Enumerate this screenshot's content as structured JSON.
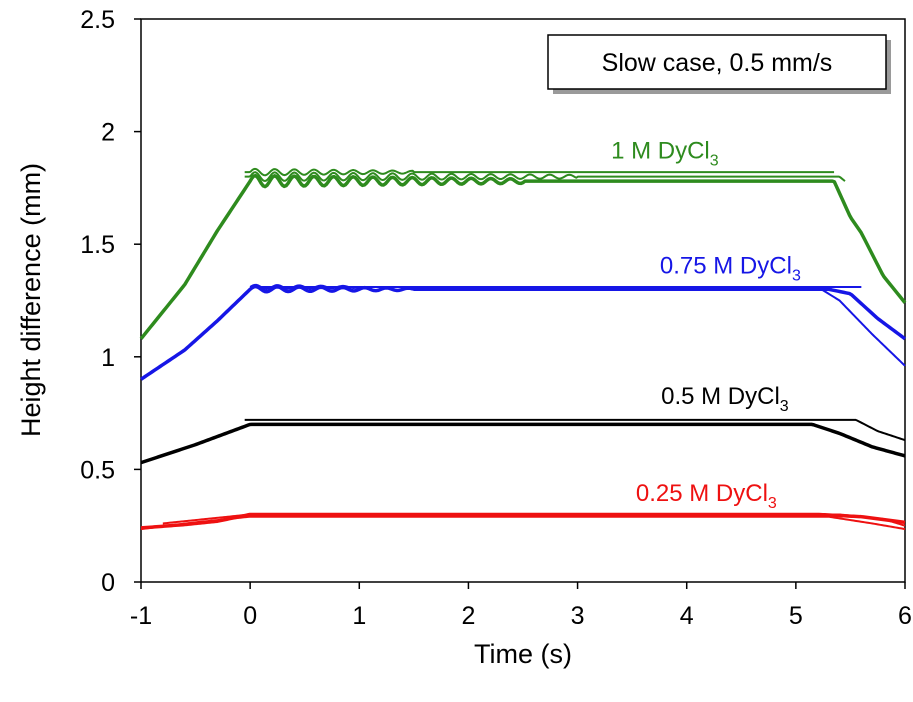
{
  "chart_data": {
    "type": "line",
    "title": "",
    "xlabel": "Time (s)",
    "ylabel": "Height difference (mm)",
    "xlim": [
      -1,
      6
    ],
    "ylim": [
      0,
      2.5
    ],
    "xticks": [
      -1,
      0,
      1,
      2,
      3,
      4,
      5,
      6
    ],
    "yticks": [
      0,
      0.5,
      1,
      1.5,
      2,
      2.5
    ],
    "xtick_labels": [
      "-1",
      "0",
      "1",
      "2",
      "3",
      "4",
      "5",
      "6"
    ],
    "ytick_labels": [
      "0",
      "0.5",
      "1",
      "1.5",
      "2",
      "2.5"
    ],
    "grid": false,
    "legend": "none",
    "annotation": "Slow case, 0.5 mm/s",
    "series": [
      {
        "name": "1 M DyCl3",
        "label_main": "1 M DyCl",
        "label_sub": "3",
        "color": "#2e8b1e",
        "curves": [
          {
            "width": 3.5,
            "x": [
              -1,
              -0.6,
              -0.3,
              0,
              5.35,
              5.5,
              5.6,
              5.8,
              6
            ],
            "y": [
              1.08,
              1.32,
              1.56,
              1.78,
              1.78,
              1.62,
              1.55,
              1.36,
              1.24
            ],
            "osc_start": 0,
            "osc_end": 2.5,
            "amp": 0.025,
            "period": 0.18
          },
          {
            "width": 2,
            "x": [
              -0.05,
              5.4,
              5.45
            ],
            "y": [
              1.8,
              1.8,
              1.78
            ],
            "osc_start": 0,
            "osc_end": 3,
            "amp": 0.02,
            "period": 0.18
          },
          {
            "width": 2,
            "x": [
              -0.05,
              5.35
            ],
            "y": [
              1.82,
              1.82
            ],
            "osc_start": 0,
            "osc_end": 1.5,
            "amp": 0.015,
            "period": 0.18
          }
        ]
      },
      {
        "name": "0.75 M DyCl3",
        "label_main": "0.75 M DyCl",
        "label_sub": "3",
        "color": "#1616e6",
        "curves": [
          {
            "width": 3.5,
            "x": [
              -1,
              -0.6,
              -0.3,
              0,
              5.3,
              5.5,
              5.75,
              6
            ],
            "y": [
              0.9,
              1.03,
              1.16,
              1.3,
              1.3,
              1.28,
              1.17,
              1.08
            ],
            "osc_start": 0,
            "osc_end": 1.5,
            "amp": 0.012,
            "period": 0.2
          },
          {
            "width": 2,
            "x": [
              0,
              5.2,
              5.4,
              5.7,
              6
            ],
            "y": [
              1.31,
              1.31,
              1.25,
              1.1,
              0.96
            ],
            "osc_start": 0,
            "osc_end": 1,
            "amp": 0.01,
            "period": 0.2
          },
          {
            "width": 2,
            "x": [
              0,
              5.55,
              5.6
            ],
            "y": [
              1.31,
              1.31,
              1.31
            ],
            "osc_start": 0,
            "osc_end": 0,
            "amp": 0,
            "period": 0.2
          }
        ]
      },
      {
        "name": "0.5 M DyCl3",
        "label_main": "0.5 M DyCl",
        "label_sub": "3",
        "color": "#000000",
        "curves": [
          {
            "width": 3.5,
            "x": [
              -1,
              -0.5,
              0,
              5.15,
              5.4,
              5.7,
              6
            ],
            "y": [
              0.53,
              0.61,
              0.7,
              0.7,
              0.66,
              0.6,
              0.56
            ],
            "osc_start": 0,
            "osc_end": 0,
            "amp": 0,
            "period": 0.2
          },
          {
            "width": 2,
            "x": [
              -0.05,
              5.55,
              5.75,
              6
            ],
            "y": [
              0.72,
              0.72,
              0.67,
              0.63
            ],
            "osc_start": 0,
            "osc_end": 0,
            "amp": 0,
            "period": 0.2
          }
        ]
      },
      {
        "name": "0.25 M DyCl3",
        "label_main": "0.25 M DyCl",
        "label_sub": "3",
        "color": "#ee1111",
        "curves": [
          {
            "width": 3.5,
            "x": [
              -1,
              -0.6,
              -0.3,
              0,
              5.2,
              5.6,
              6
            ],
            "y": [
              0.24,
              0.255,
              0.27,
              0.3,
              0.3,
              0.29,
              0.265
            ],
            "osc_start": 0,
            "osc_end": 0,
            "amp": 0,
            "period": 0.2
          },
          {
            "width": 2,
            "x": [
              -1,
              -0.5,
              0,
              5.3,
              5.7,
              6
            ],
            "y": [
              0.235,
              0.265,
              0.29,
              0.29,
              0.26,
              0.235
            ],
            "osc_start": 0,
            "osc_end": 0,
            "amp": 0,
            "period": 0.2
          },
          {
            "width": 2,
            "x": [
              -0.8,
              -0.3,
              0,
              5.4,
              5.8,
              6
            ],
            "y": [
              0.26,
              0.285,
              0.3,
              0.3,
              0.28,
              0.25
            ],
            "osc_start": 0,
            "osc_end": 0,
            "amp": 0,
            "period": 0.2
          }
        ]
      }
    ]
  }
}
